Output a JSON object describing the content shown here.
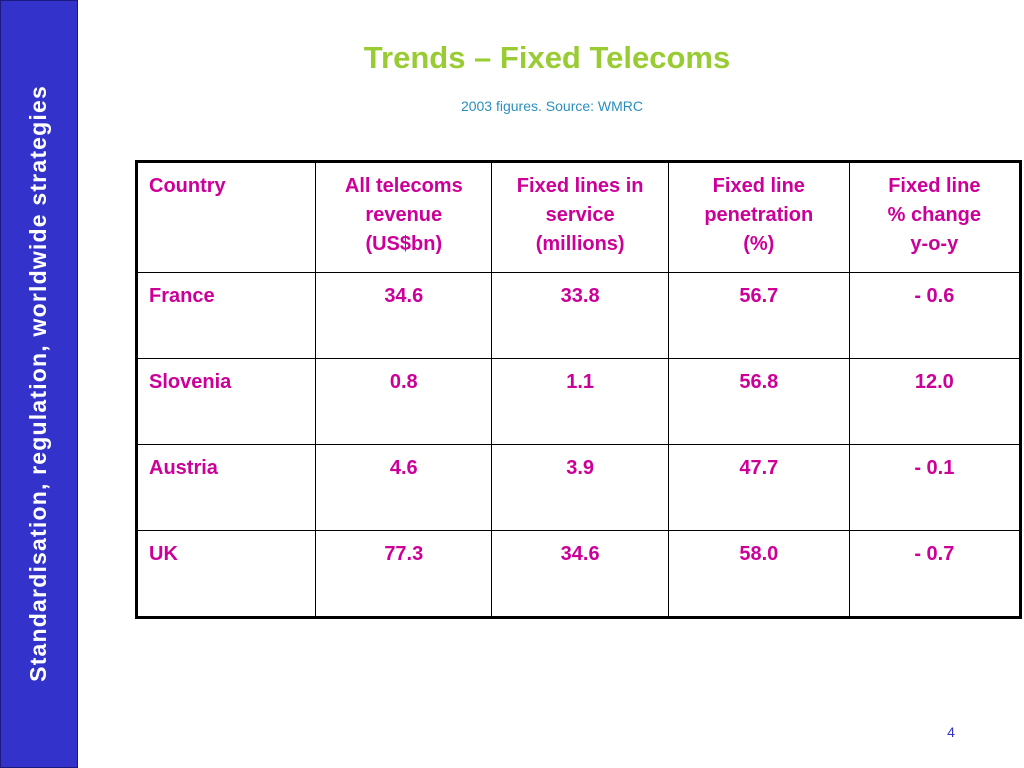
{
  "sidebar": {
    "text": "Standardisation, regulation, worldwide strategies"
  },
  "header": {
    "title": "Trends – Fixed Telecoms",
    "subtitle": "2003 figures. Source: WMRC"
  },
  "table": {
    "columns": [
      [
        "Country"
      ],
      [
        "All telecoms",
        "revenue",
        "(US$bn)"
      ],
      [
        "Fixed lines in",
        "service",
        "(millions)"
      ],
      [
        "Fixed line",
        "penetration",
        "(%)"
      ],
      [
        "Fixed line",
        "% change",
        "y-o-y"
      ]
    ],
    "rows": [
      [
        "France",
        "34.6",
        "33.8",
        "56.7",
        "- 0.6"
      ],
      [
        "Slovenia",
        "0.8",
        "1.1",
        "56.8",
        "12.0"
      ],
      [
        "Austria",
        "4.6",
        "3.9",
        "47.7",
        "- 0.1"
      ],
      [
        "UK",
        "77.3",
        "34.6",
        "58.0",
        "- 0.7"
      ]
    ]
  },
  "footer": {
    "page_number": "4"
  }
}
